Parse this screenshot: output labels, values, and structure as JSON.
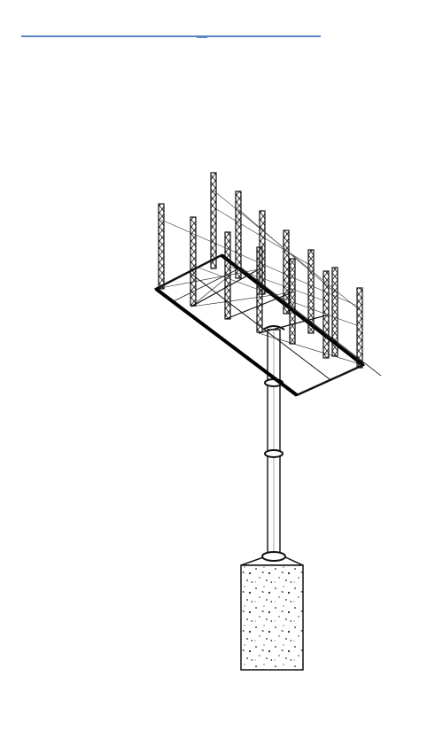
{
  "figure": {
    "subject": "billboard-truss-structure-on-monopole-with-concrete-footing",
    "accent_color": "#5b86c4",
    "line_color": "#111111"
  }
}
